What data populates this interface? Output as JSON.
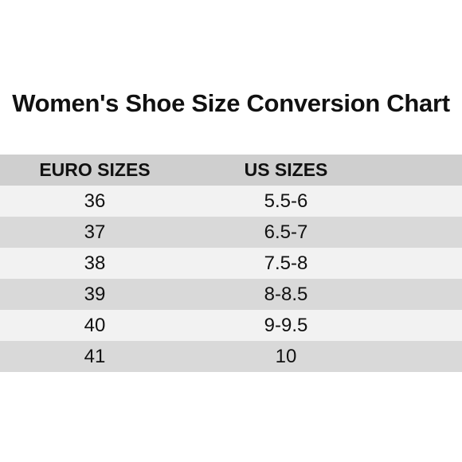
{
  "title": "Women's Shoe Size Conversion Chart",
  "table": {
    "headers": [
      "EURO SIZES",
      "US SIZES"
    ],
    "rows": [
      [
        "36",
        "5.5-6"
      ],
      [
        "37",
        "6.5-7"
      ],
      [
        "38",
        "7.5-8"
      ],
      [
        "39",
        "8-8.5"
      ],
      [
        "40",
        "9-9.5"
      ],
      [
        "41",
        "10"
      ]
    ]
  },
  "colors": {
    "header_bg": "#cfcfcf",
    "row_light": "#f2f2f2",
    "row_dark": "#d9d9d9"
  }
}
